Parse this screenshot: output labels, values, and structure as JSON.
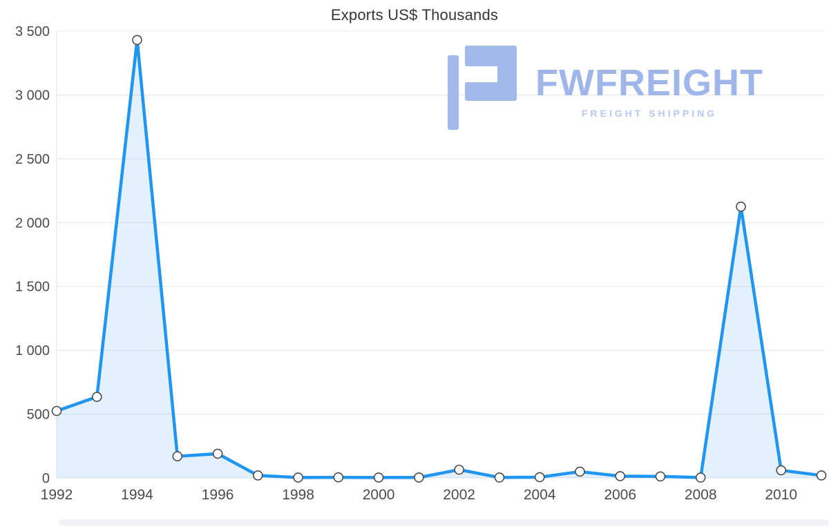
{
  "title": "Exports US$ Thousands",
  "watermark": {
    "brand": "FWFREIGHT",
    "tagline": "FREIGHT SHIPPING",
    "logo_color": "#a2b9ec"
  },
  "colors": {
    "line": "#2095f2",
    "area_fill": "rgba(33,150,243,0.13)",
    "marker_fill": "#ffffff",
    "marker_stroke": "#4a4a4a",
    "grid": "#e4e4e4",
    "axis_text": "#4c4c4c",
    "title_text": "#373737",
    "watermark_blue": "#a2b9ec"
  },
  "chart_data": {
    "type": "area",
    "title": "Exports US$ Thousands",
    "series_name": "Exports US$ Thousands",
    "x": [
      1992,
      1993,
      1994,
      1995,
      1996,
      1997,
      1998,
      1999,
      2000,
      2001,
      2002,
      2003,
      2004,
      2005,
      2006,
      2007,
      2008,
      2009,
      2010,
      2011
    ],
    "values": [
      525,
      635,
      3430,
      170,
      190,
      20,
      3,
      5,
      3,
      4,
      65,
      4,
      6,
      50,
      14,
      12,
      3,
      2125,
      60,
      20
    ],
    "ylim": [
      0,
      3500
    ],
    "y_ticks": [
      0,
      500,
      1000,
      1500,
      2000,
      2500,
      3000,
      3500
    ],
    "y_tick_labels": [
      "0",
      "500",
      "1 000",
      "1 500",
      "2 000",
      "2 500",
      "3 000",
      "3 500"
    ],
    "x_ticks": [
      1992,
      1994,
      1996,
      1998,
      2000,
      2002,
      2004,
      2006,
      2008,
      2010
    ],
    "x_tick_labels": [
      "1992",
      "1994",
      "1996",
      "1998",
      "2000",
      "2002",
      "2004",
      "2006",
      "2008",
      "2010"
    ],
    "grid": true,
    "legend": false,
    "xlabel": "",
    "ylabel": ""
  }
}
